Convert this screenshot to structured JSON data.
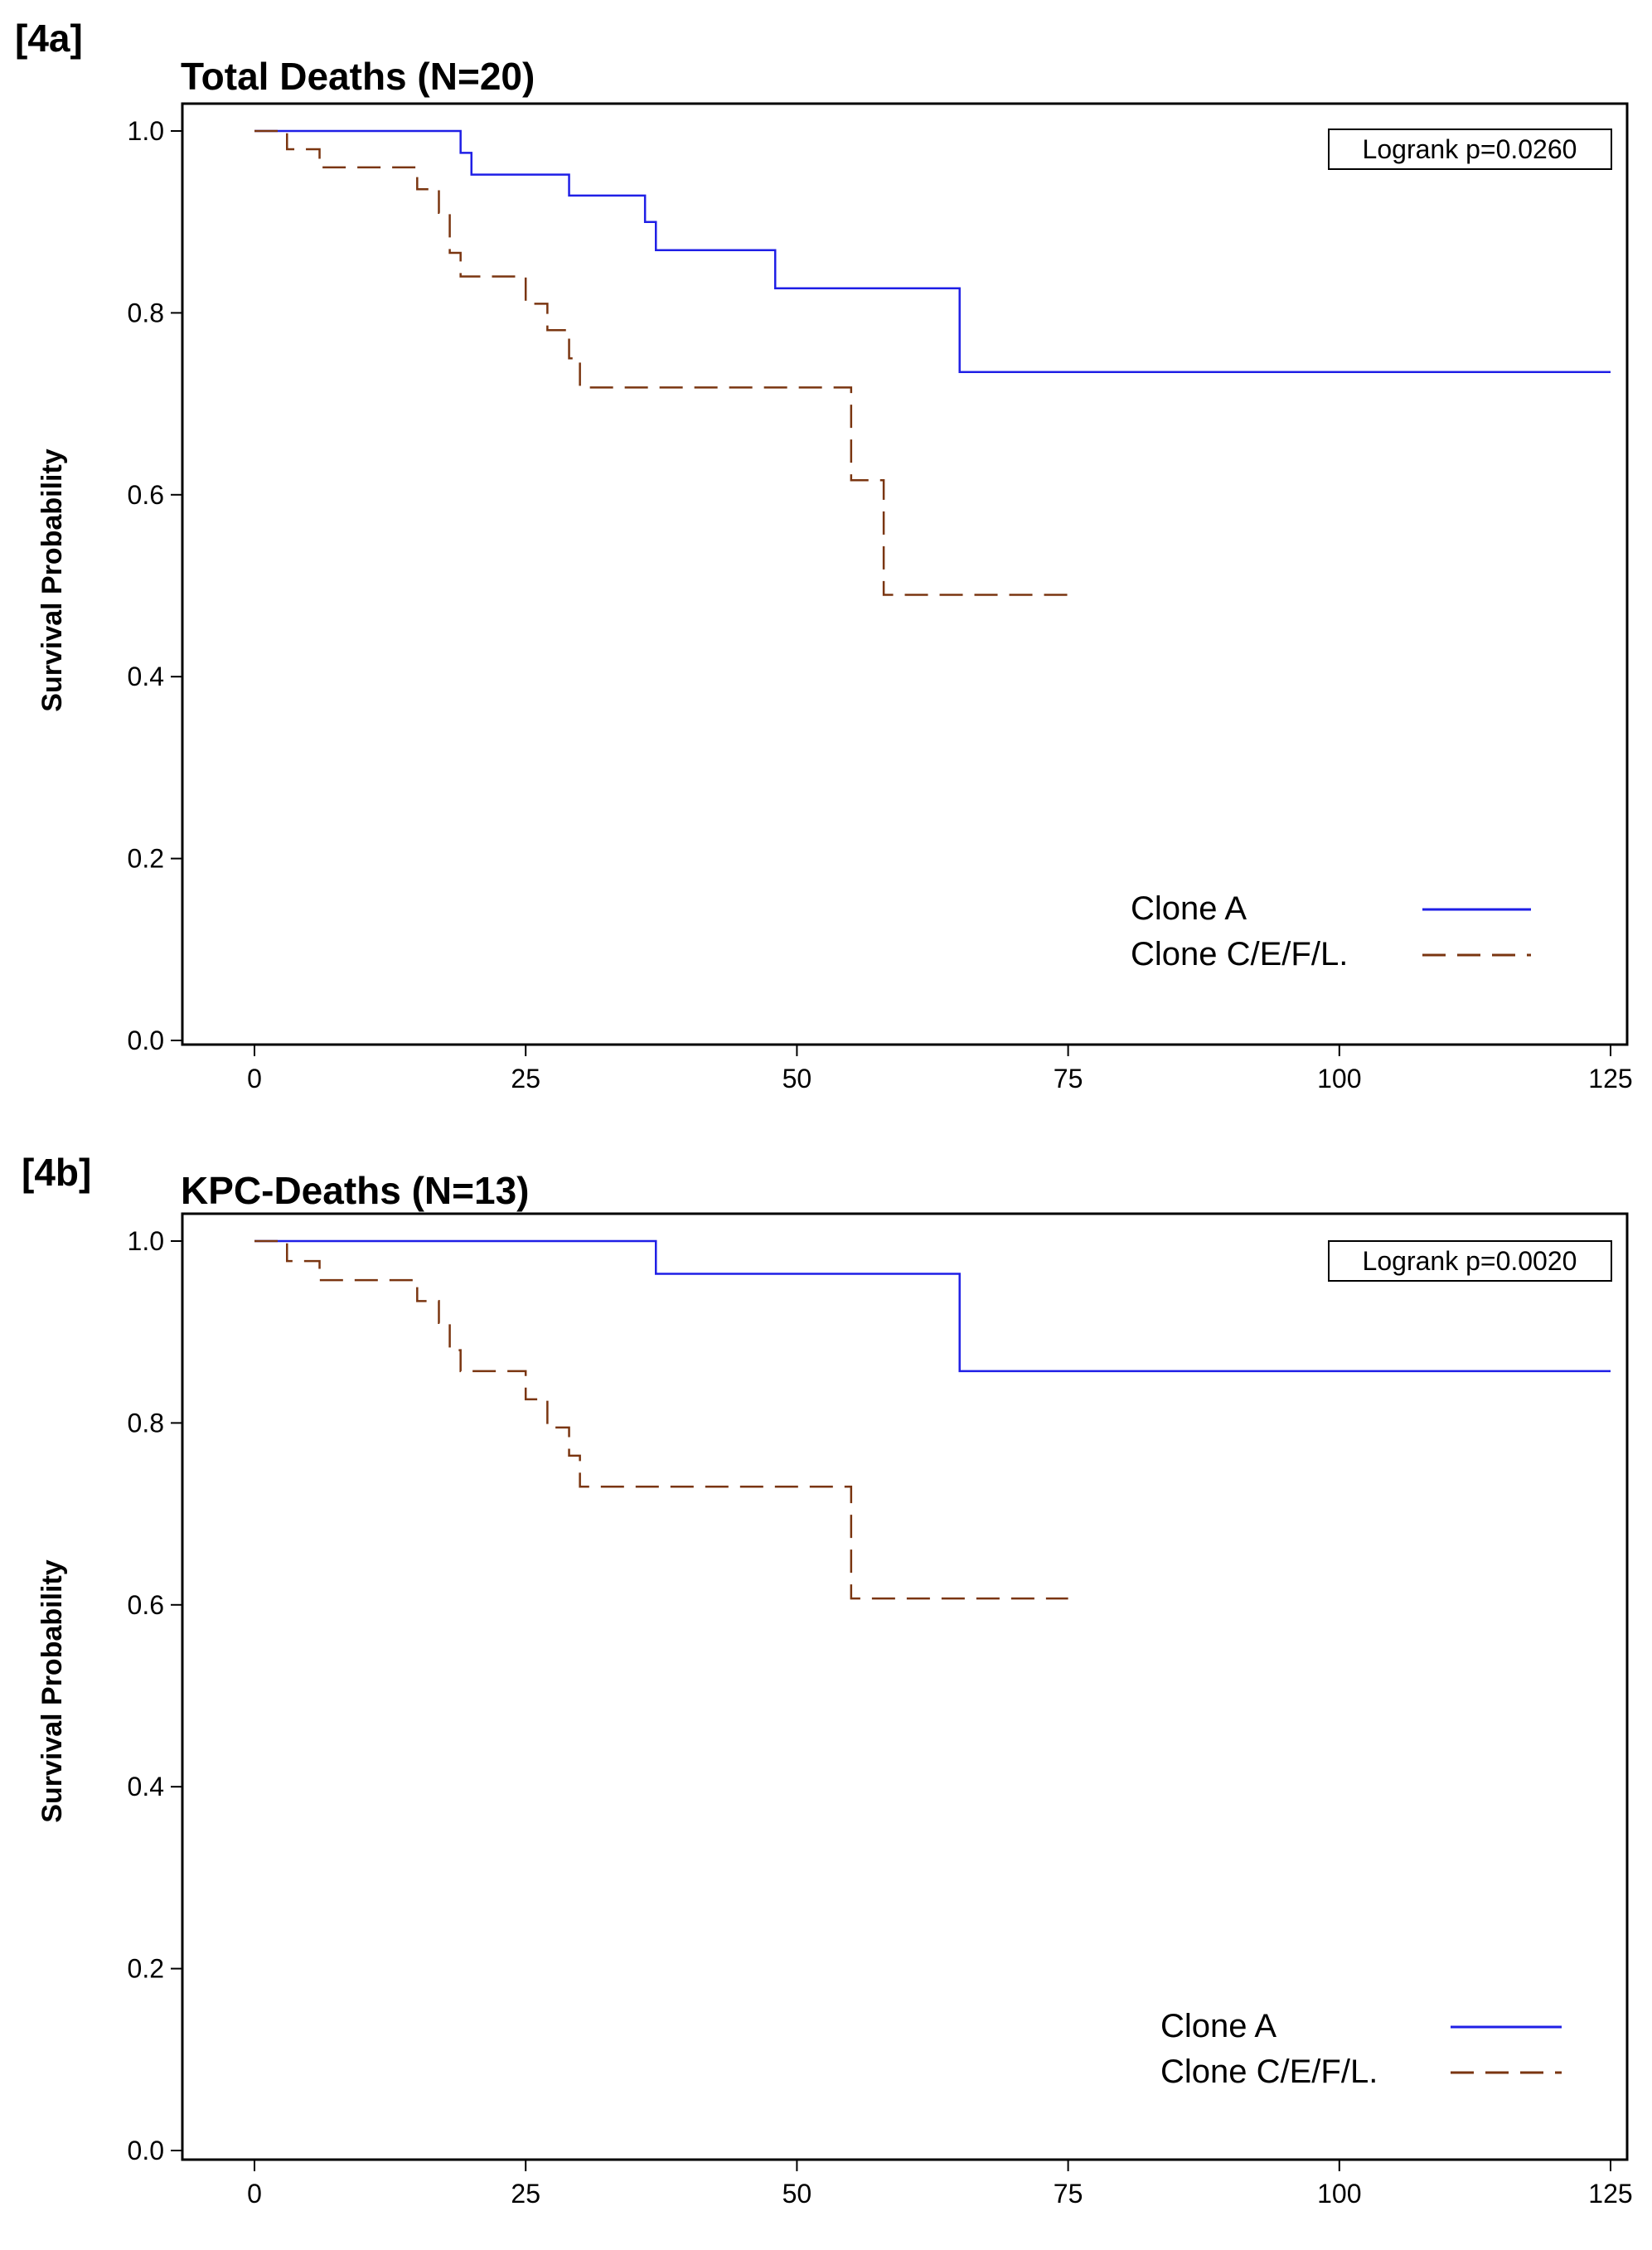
{
  "chart_data": [
    {
      "panel_label": "[4a]",
      "type": "line",
      "step": true,
      "title": "Total Deaths (N=20)",
      "xlabel": "",
      "ylabel": "Survival Probability",
      "xlim": [
        0,
        125
      ],
      "ylim": [
        0,
        1
      ],
      "xticks": [
        "0",
        "25",
        "50",
        "75",
        "100",
        "125"
      ],
      "yticks": [
        "0.0",
        "0.2",
        "0.4",
        "0.6",
        "0.8",
        "1.0"
      ],
      "annotation": "Logrank p=0.0260",
      "legend_position": "bottom-right",
      "grid": false,
      "series": [
        {
          "name": "Clone A",
          "color": "#1f1fe6",
          "dash": "solid",
          "x": [
            0,
            19,
            20,
            29,
            36,
            37,
            48,
            65,
            125
          ],
          "y": [
            1.0,
            0.976,
            0.952,
            0.929,
            0.9,
            0.869,
            0.827,
            0.735,
            0.735
          ]
        },
        {
          "name": "Clone C/E/F/L.",
          "color": "#7a3510",
          "dash": "dashed",
          "x": [
            0,
            3,
            6,
            15,
            17,
            18,
            19,
            25,
            27,
            29,
            30,
            55,
            58,
            75
          ],
          "y": [
            1.0,
            0.98,
            0.96,
            0.936,
            0.91,
            0.866,
            0.84,
            0.81,
            0.781,
            0.75,
            0.718,
            0.616,
            0.49,
            0.49
          ]
        }
      ]
    },
    {
      "panel_label": "[4b]",
      "type": "line",
      "step": true,
      "title": "KPC-Deaths (N=13)",
      "xlabel": "",
      "ylabel": "Survival Probability",
      "xlim": [
        0,
        125
      ],
      "ylim": [
        0,
        1
      ],
      "xticks": [
        "0",
        "25",
        "50",
        "75",
        "100",
        "125"
      ],
      "yticks": [
        "0.0",
        "0.2",
        "0.4",
        "0.6",
        "0.8",
        "1.0"
      ],
      "annotation": "Logrank p=0.0020",
      "legend_position": "bottom-right",
      "grid": false,
      "series": [
        {
          "name": "Clone A",
          "color": "#1f1fe6",
          "dash": "solid",
          "x": [
            0,
            37,
            65,
            125
          ],
          "y": [
            1.0,
            0.964,
            0.857,
            0.857
          ]
        },
        {
          "name": "Clone C/E/F/L.",
          "color": "#7a3510",
          "dash": "dashed",
          "x": [
            0,
            3,
            6,
            15,
            17,
            18,
            19,
            25,
            27,
            29,
            30,
            55,
            75
          ],
          "y": [
            1.0,
            0.978,
            0.957,
            0.934,
            0.91,
            0.88,
            0.857,
            0.826,
            0.795,
            0.764,
            0.73,
            0.607,
            0.607
          ]
        }
      ]
    }
  ]
}
